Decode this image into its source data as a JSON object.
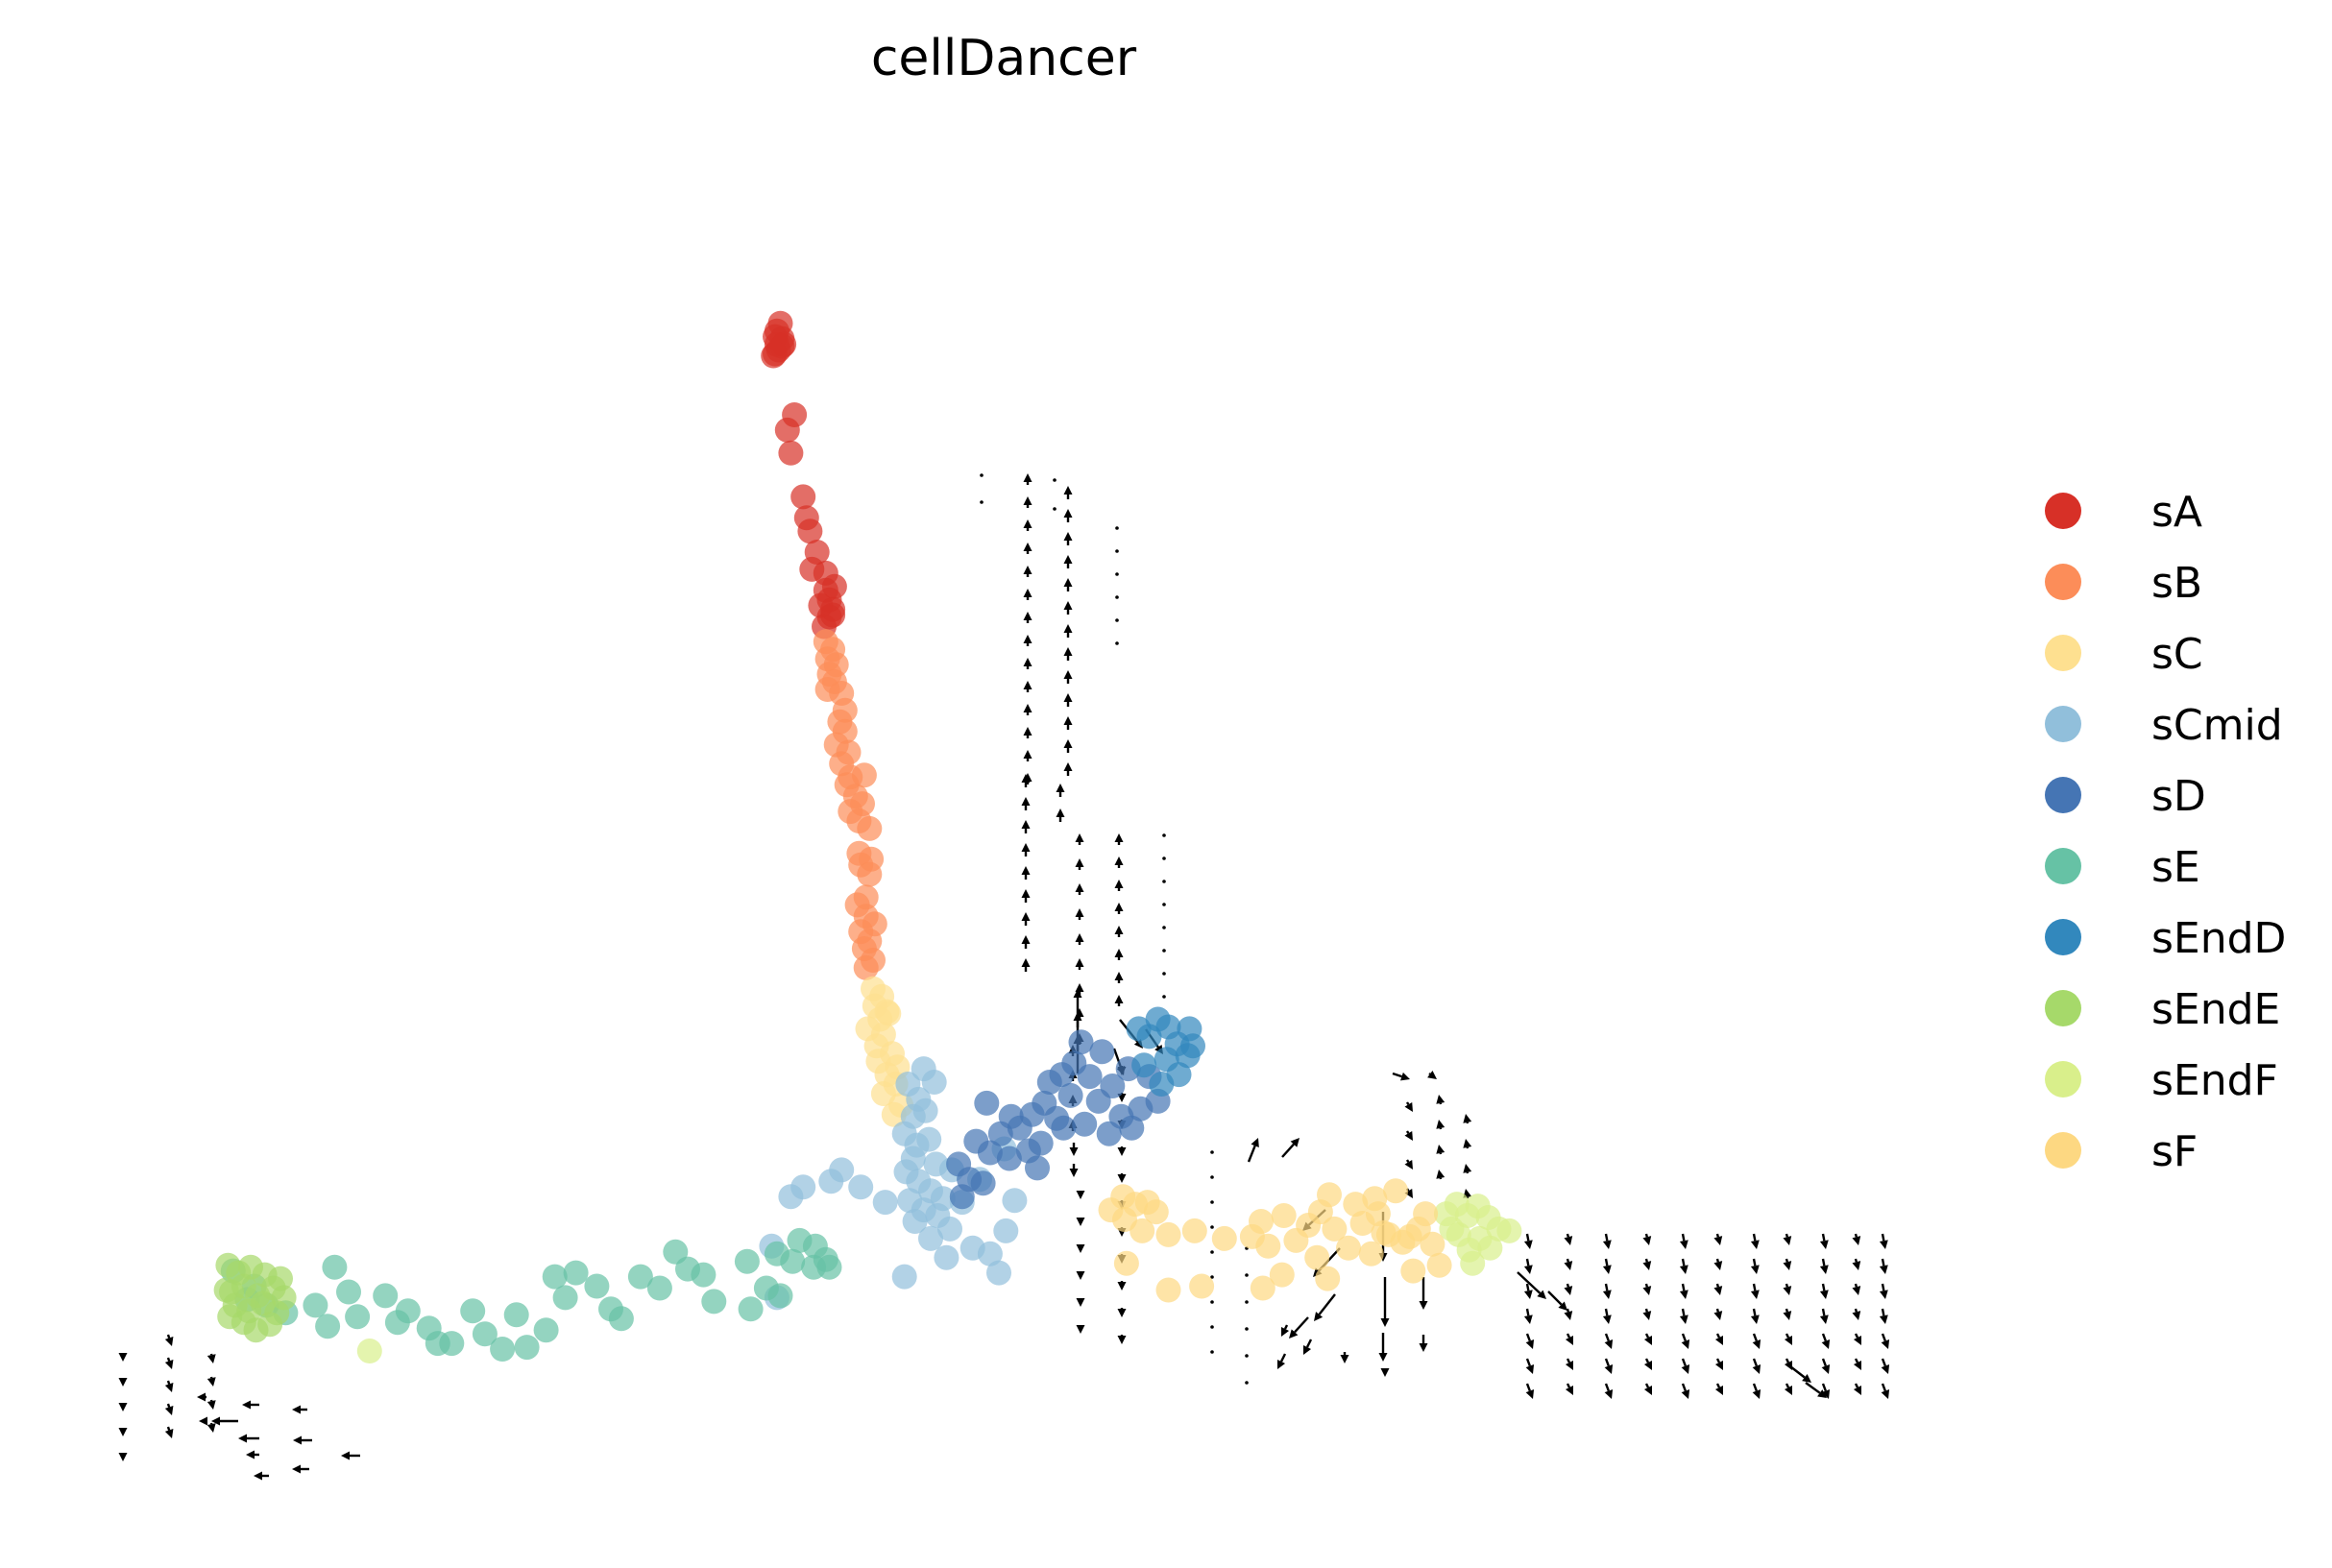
{
  "chart_data": {
    "type": "scatter",
    "title": "cellDancer",
    "xlabel": "",
    "ylabel": "",
    "axes_visible": false,
    "grid": false,
    "xlim": [
      0,
      100
    ],
    "ylim": [
      0,
      70
    ],
    "legend_position": "right",
    "marker_alpha": 0.7,
    "series": [
      {
        "name": "sA",
        "color": "#d73027",
        "points": [
          [
            37.5,
            61.1
          ],
          [
            37.3,
            60.7
          ],
          [
            37.6,
            60.3
          ],
          [
            37.3,
            60.0
          ],
          [
            37.4,
            59.7
          ],
          [
            37.1,
            59.4
          ],
          [
            37.6,
            59.9
          ],
          [
            37.2,
            60.4
          ],
          [
            37.7,
            60.0
          ],
          [
            37.2,
            59.5
          ],
          [
            38.3,
            56.3
          ],
          [
            37.9,
            55.5
          ],
          [
            38.1,
            54.3
          ],
          [
            38.8,
            52.0
          ],
          [
            39.0,
            50.9
          ],
          [
            39.2,
            50.2
          ],
          [
            39.6,
            49.1
          ],
          [
            39.3,
            48.2
          ],
          [
            40.1,
            48.0
          ],
          [
            40.6,
            47.3
          ],
          [
            40.1,
            47.1
          ],
          [
            40.3,
            46.6
          ],
          [
            40.5,
            46.1
          ],
          [
            39.8,
            46.3
          ],
          [
            40.3,
            45.7
          ],
          [
            40.0,
            45.2
          ],
          [
            40.5,
            45.8
          ]
        ]
      },
      {
        "name": "sB",
        "color": "#fc8d59",
        "points": [
          [
            40.1,
            44.4
          ],
          [
            40.5,
            44.0
          ],
          [
            40.2,
            43.5
          ],
          [
            40.7,
            43.2
          ],
          [
            40.3,
            42.7
          ],
          [
            40.6,
            42.3
          ],
          [
            40.2,
            41.9
          ],
          [
            41.0,
            41.7
          ],
          [
            41.2,
            40.8
          ],
          [
            40.9,
            40.2
          ],
          [
            41.2,
            39.7
          ],
          [
            40.7,
            39.0
          ],
          [
            41.4,
            38.6
          ],
          [
            41.0,
            38.0
          ],
          [
            41.5,
            37.3
          ],
          [
            42.3,
            37.4
          ],
          [
            41.3,
            36.9
          ],
          [
            41.8,
            36.3
          ],
          [
            42.2,
            35.9
          ],
          [
            41.5,
            35.5
          ],
          [
            42.0,
            35.0
          ],
          [
            42.6,
            34.6
          ],
          [
            42.0,
            33.3
          ],
          [
            42.7,
            33.0
          ],
          [
            42.1,
            32.7
          ],
          [
            42.6,
            32.2
          ],
          [
            42.4,
            31.0
          ],
          [
            41.9,
            30.6
          ],
          [
            42.4,
            30.0
          ],
          [
            42.9,
            29.6
          ],
          [
            42.1,
            29.2
          ],
          [
            42.6,
            28.7
          ],
          [
            42.3,
            28.3
          ],
          [
            42.8,
            27.7
          ],
          [
            42.4,
            27.3
          ]
        ]
      },
      {
        "name": "sC",
        "color": "#fee090",
        "points": [
          [
            42.8,
            26.2
          ],
          [
            43.3,
            25.8
          ],
          [
            42.9,
            25.3
          ],
          [
            43.6,
            25.0
          ],
          [
            43.2,
            24.6
          ],
          [
            42.5,
            24.1
          ],
          [
            43.4,
            23.8
          ],
          [
            43.0,
            23.2
          ],
          [
            43.9,
            22.8
          ],
          [
            43.1,
            22.4
          ],
          [
            43.6,
            21.7
          ],
          [
            44.1,
            21.2
          ],
          [
            43.4,
            20.7
          ],
          [
            44.4,
            20.1
          ],
          [
            44.0,
            19.6
          ],
          [
            43.7,
            24.9
          ],
          [
            44.2,
            22.1
          ]
        ]
      },
      {
        "name": "sCmid",
        "color": "#91bfdb",
        "points": [
          [
            44.8,
            21.2
          ],
          [
            45.4,
            20.4
          ],
          [
            45.1,
            19.5
          ],
          [
            45.8,
            19.8
          ],
          [
            44.6,
            18.6
          ],
          [
            45.3,
            18.0
          ],
          [
            46.0,
            18.3
          ],
          [
            45.1,
            17.3
          ],
          [
            46.4,
            17.0
          ],
          [
            44.7,
            16.6
          ],
          [
            45.4,
            16.1
          ],
          [
            46.1,
            15.6
          ],
          [
            44.9,
            15.1
          ],
          [
            45.7,
            14.6
          ],
          [
            46.5,
            14.3
          ],
          [
            45.2,
            14.0
          ],
          [
            46.8,
            15.2
          ],
          [
            47.3,
            16.7
          ],
          [
            47.9,
            15.0
          ],
          [
            46.1,
            13.1
          ],
          [
            47.2,
            13.6
          ],
          [
            48.5,
            12.6
          ],
          [
            47.0,
            12.1
          ],
          [
            46.3,
            21.3
          ],
          [
            45.7,
            22.0
          ],
          [
            44.6,
            11.1
          ],
          [
            41.0,
            16.7
          ],
          [
            40.4,
            16.1
          ],
          [
            38.8,
            15.8
          ],
          [
            38.1,
            15.3
          ],
          [
            42.1,
            15.8
          ],
          [
            43.5,
            15.0
          ],
          [
            37.0,
            12.7
          ],
          [
            37.3,
            10.0
          ],
          [
            49.5,
            12.3
          ],
          [
            50.4,
            13.5
          ],
          [
            50.0,
            11.3
          ],
          [
            50.9,
            15.1
          ],
          [
            50.3,
            17.8
          ],
          [
            48.9,
            16.2
          ]
        ]
      },
      {
        "name": "sD",
        "color": "#4575b4",
        "points": [
          [
            47.7,
            17.0
          ],
          [
            48.3,
            16.2
          ],
          [
            47.9,
            15.3
          ],
          [
            49.1,
            16.0
          ],
          [
            48.7,
            18.2
          ],
          [
            49.5,
            17.6
          ],
          [
            50.6,
            17.3
          ],
          [
            50.1,
            18.6
          ],
          [
            51.2,
            18.9
          ],
          [
            51.7,
            17.7
          ],
          [
            52.4,
            18.1
          ],
          [
            51.9,
            19.6
          ],
          [
            52.6,
            20.2
          ],
          [
            53.3,
            19.4
          ],
          [
            52.9,
            21.3
          ],
          [
            53.6,
            21.7
          ],
          [
            54.3,
            22.3
          ],
          [
            54.1,
            20.6
          ],
          [
            53.7,
            18.9
          ],
          [
            54.9,
            19.1
          ],
          [
            55.7,
            20.3
          ],
          [
            55.2,
            21.6
          ],
          [
            54.7,
            23.4
          ],
          [
            55.9,
            22.9
          ],
          [
            56.5,
            21.1
          ],
          [
            57.0,
            19.5
          ],
          [
            56.3,
            18.6
          ],
          [
            57.6,
            18.9
          ],
          [
            58.1,
            19.9
          ],
          [
            57.4,
            22.0
          ],
          [
            58.6,
            21.6
          ],
          [
            59.1,
            20.3
          ],
          [
            49.3,
            20.2
          ],
          [
            50.7,
            19.5
          ],
          [
            52.2,
            16.8
          ]
        ]
      },
      {
        "name": "sE",
        "color": "#66c2a5",
        "points": [
          [
            6.2,
            11.4
          ],
          [
            7.4,
            10.6
          ],
          [
            8.1,
            9.6
          ],
          [
            9.2,
            9.2
          ],
          [
            10.9,
            9.6
          ],
          [
            11.6,
            8.5
          ],
          [
            12.8,
            10.3
          ],
          [
            13.3,
            9.0
          ],
          [
            14.9,
            10.1
          ],
          [
            15.6,
            8.7
          ],
          [
            16.2,
            9.3
          ],
          [
            17.4,
            8.4
          ],
          [
            17.9,
            7.6
          ],
          [
            18.7,
            7.6
          ],
          [
            19.9,
            9.3
          ],
          [
            20.6,
            8.1
          ],
          [
            21.6,
            7.3
          ],
          [
            22.4,
            9.1
          ],
          [
            23.0,
            7.4
          ],
          [
            24.1,
            8.3
          ],
          [
            24.6,
            11.1
          ],
          [
            25.2,
            10.0
          ],
          [
            25.8,
            11.3
          ],
          [
            27.0,
            10.6
          ],
          [
            27.8,
            9.4
          ],
          [
            28.4,
            8.9
          ],
          [
            29.5,
            11.1
          ],
          [
            30.6,
            10.5
          ],
          [
            32.2,
            11.5
          ],
          [
            33.1,
            11.2
          ],
          [
            33.7,
            9.8
          ],
          [
            35.8,
            9.4
          ],
          [
            36.7,
            10.5
          ],
          [
            37.5,
            10.1
          ],
          [
            38.2,
            11.9
          ],
          [
            38.6,
            13.0
          ],
          [
            39.4,
            11.6
          ],
          [
            40.1,
            12.0
          ],
          [
            35.6,
            11.9
          ],
          [
            37.3,
            12.3
          ],
          [
            39.5,
            12.7
          ],
          [
            31.5,
            12.4
          ],
          [
            7.0,
            9.9
          ],
          [
            12.0,
            11.6
          ],
          [
            40.3,
            11.6
          ]
        ]
      },
      {
        "name": "sEndD",
        "color": "#3288bd",
        "points": [
          [
            58.0,
            24.1
          ],
          [
            58.6,
            23.7
          ],
          [
            59.1,
            24.6
          ],
          [
            59.7,
            24.2
          ],
          [
            60.2,
            23.3
          ],
          [
            59.6,
            22.5
          ],
          [
            60.3,
            21.7
          ],
          [
            59.3,
            21.2
          ],
          [
            60.8,
            22.7
          ],
          [
            58.3,
            22.2
          ],
          [
            60.9,
            24.1
          ],
          [
            61.1,
            23.2
          ]
        ]
      },
      {
        "name": "sEndE",
        "color": "#a6d96a",
        "points": [
          [
            5.9,
            11.7
          ],
          [
            6.5,
            11.3
          ],
          [
            7.2,
            11.6
          ],
          [
            8.0,
            11.2
          ],
          [
            6.1,
            10.3
          ],
          [
            6.8,
            10.6
          ],
          [
            7.6,
            10.1
          ],
          [
            8.5,
            10.5
          ],
          [
            6.3,
            9.6
          ],
          [
            7.1,
            9.3
          ],
          [
            7.9,
            9.7
          ],
          [
            8.7,
            9.2
          ],
          [
            6.8,
            8.7
          ],
          [
            7.5,
            8.3
          ],
          [
            8.3,
            8.6
          ],
          [
            9.1,
            10.0
          ],
          [
            6.0,
            9.0
          ],
          [
            5.8,
            10.4
          ],
          [
            8.9,
            11.0
          ]
        ]
      },
      {
        "name": "sEndF",
        "color": "#d9ef8b",
        "points": [
          [
            75.6,
            14.4
          ],
          [
            76.2,
            14.9
          ],
          [
            76.8,
            14.3
          ],
          [
            77.4,
            14.8
          ],
          [
            78.0,
            14.2
          ],
          [
            78.6,
            13.6
          ],
          [
            77.5,
            13.1
          ],
          [
            76.3,
            13.3
          ],
          [
            76.9,
            12.5
          ],
          [
            78.1,
            12.6
          ],
          [
            77.1,
            11.8
          ],
          [
            79.2,
            13.5
          ],
          [
            75.9,
            13.6
          ],
          [
            14.0,
            7.2
          ]
        ]
      },
      {
        "name": "sF",
        "color": "#fdd882",
        "points": [
          [
            57.1,
            15.3
          ],
          [
            57.8,
            14.9
          ],
          [
            58.5,
            15.0
          ],
          [
            56.4,
            14.6
          ],
          [
            57.2,
            14.1
          ],
          [
            59.0,
            14.5
          ],
          [
            58.2,
            13.5
          ],
          [
            59.7,
            13.3
          ],
          [
            61.2,
            13.5
          ],
          [
            62.9,
            13.1
          ],
          [
            64.5,
            13.2
          ],
          [
            65.4,
            12.7
          ],
          [
            65.0,
            14.0
          ],
          [
            66.3,
            14.3
          ],
          [
            67.0,
            13.0
          ],
          [
            67.7,
            13.8
          ],
          [
            68.4,
            14.5
          ],
          [
            69.2,
            13.6
          ],
          [
            70.0,
            12.6
          ],
          [
            70.8,
            13.9
          ],
          [
            71.7,
            14.4
          ],
          [
            72.3,
            13.3
          ],
          [
            73.1,
            12.9
          ],
          [
            74.0,
            13.6
          ],
          [
            74.8,
            12.8
          ],
          [
            66.2,
            11.2
          ],
          [
            68.8,
            11.0
          ],
          [
            71.3,
            12.3
          ],
          [
            73.7,
            11.4
          ],
          [
            75.2,
            11.7
          ],
          [
            57.3,
            11.8
          ],
          [
            59.7,
            10.4
          ],
          [
            61.6,
            10.6
          ],
          [
            65.1,
            10.5
          ],
          [
            68.2,
            12.1
          ],
          [
            68.9,
            15.4
          ],
          [
            71.5,
            15.2
          ],
          [
            72.7,
            15.6
          ],
          [
            74.4,
            14.4
          ],
          [
            70.4,
            14.9
          ],
          [
            72.0,
            13.4
          ],
          [
            73.5,
            13.2
          ]
        ]
      }
    ]
  }
}
